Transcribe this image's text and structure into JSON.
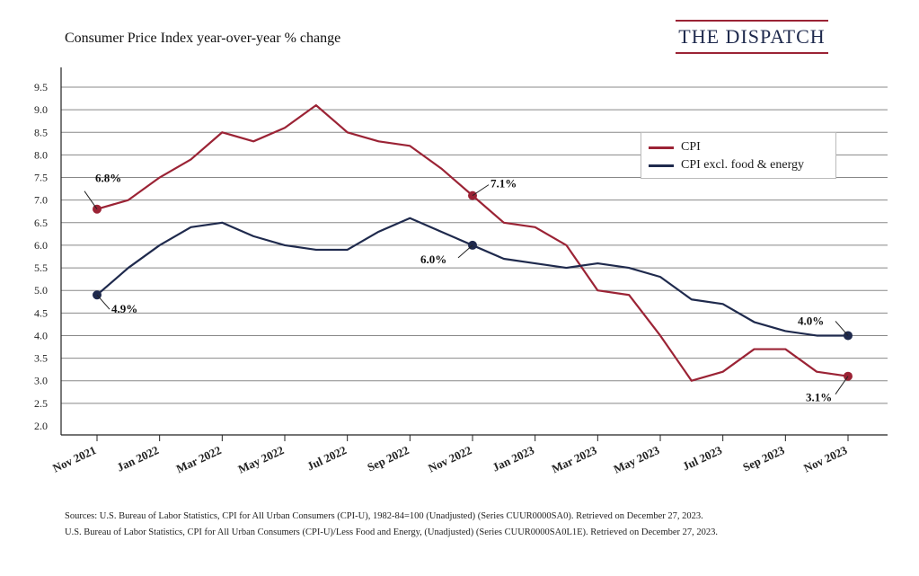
{
  "header": {
    "title": "Consumer Price Index year-over-year % change",
    "brand": "THE DISPATCH"
  },
  "sources": [
    "Sources: U.S. Bureau of Labor Statistics, CPI for All Urban Consumers (CPI-U), 1982-84=100 (Unadjusted) (Series CUUR0000SA0). Retrieved on December 27, 2023.",
    "U.S. Bureau of Labor Statistics, CPI for All Urban Consumers (CPI-U)/Less Food and Energy, (Unadjusted) (Series CUUR0000SA0L1E). Retrieved on December 27, 2023."
  ],
  "colors": {
    "cpi": "#9b2335",
    "core": "#1f2a4d",
    "grid": "#888888"
  },
  "chart_data": {
    "type": "line",
    "title": "Consumer Price Index year-over-year % change",
    "xlabel": "",
    "ylabel": "",
    "ylim": [
      2.0,
      9.5
    ],
    "yticks": [
      "2.0",
      "2.5",
      "3.0",
      "3.5",
      "4.0",
      "4.5",
      "5.0",
      "5.5",
      "6.0",
      "6.5",
      "7.0",
      "7.5",
      "8.0",
      "8.5",
      "9.0",
      "9.5"
    ],
    "x": [
      "Nov 2021",
      "Dec 2021",
      "Jan 2022",
      "Feb 2022",
      "Mar 2022",
      "Apr 2022",
      "May 2022",
      "Jun 2022",
      "Jul 2022",
      "Aug 2022",
      "Sep 2022",
      "Oct 2022",
      "Nov 2022",
      "Dec 2022",
      "Jan 2023",
      "Feb 2023",
      "Mar 2023",
      "Apr 2023",
      "May 2023",
      "Jun 2023",
      "Jul 2023",
      "Aug 2023",
      "Sep 2023",
      "Oct 2023",
      "Nov 2023"
    ],
    "xtick_labels": [
      "Nov 2021",
      "Jan 2022",
      "Mar 2022",
      "May 2022",
      "Jul 2022",
      "Sep 2022",
      "Nov 2022",
      "Jan 2023",
      "Mar 2023",
      "May 2023",
      "Jul 2023",
      "Sep 2023",
      "Nov 2023"
    ],
    "series": [
      {
        "name": "CPI",
        "color": "#9b2335",
        "values": [
          6.8,
          7.0,
          7.5,
          7.9,
          8.5,
          8.3,
          8.6,
          9.1,
          8.5,
          8.3,
          8.2,
          7.7,
          7.1,
          6.5,
          6.4,
          6.0,
          5.0,
          4.9,
          4.0,
          3.0,
          3.2,
          3.7,
          3.7,
          3.2,
          3.1
        ]
      },
      {
        "name": "CPI excl. food & energy",
        "color": "#1f2a4d",
        "values": [
          4.9,
          5.5,
          6.0,
          6.4,
          6.5,
          6.2,
          6.0,
          5.9,
          5.9,
          6.3,
          6.6,
          6.3,
          6.0,
          5.7,
          5.6,
          5.5,
          5.6,
          5.5,
          5.3,
          4.8,
          4.7,
          4.3,
          4.1,
          4.0,
          4.0
        ]
      }
    ],
    "annotations": [
      {
        "series": 0,
        "index": 0,
        "text": "6.8%"
      },
      {
        "series": 0,
        "index": 12,
        "text": "7.1%"
      },
      {
        "series": 0,
        "index": 24,
        "text": "3.1%"
      },
      {
        "series": 1,
        "index": 0,
        "text": "4.9%"
      },
      {
        "series": 1,
        "index": 12,
        "text": "6.0%"
      },
      {
        "series": 1,
        "index": 24,
        "text": "4.0%"
      }
    ],
    "grid": true,
    "legend_position": "top-right"
  }
}
